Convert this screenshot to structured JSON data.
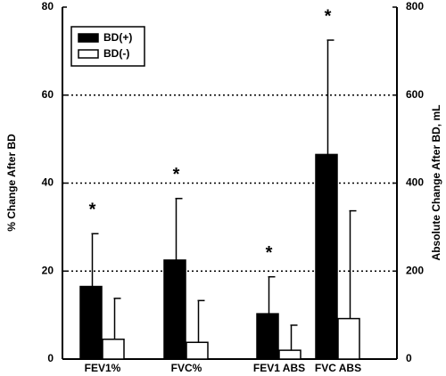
{
  "chart_data": {
    "type": "bar",
    "categories": [
      "FEV1%",
      "FVC%",
      "FEV1 ABS",
      "FVC ABS"
    ],
    "category_axis": [
      "y",
      "y",
      "y2",
      "y2"
    ],
    "series": [
      {
        "name": "BD(+)",
        "color": "#000000",
        "values": [
          16.5,
          22.5,
          103,
          465
        ],
        "errors": [
          12,
          14,
          84,
          260
        ]
      },
      {
        "name": "BD(-)",
        "color": "#ffffff",
        "values": [
          4.5,
          3.8,
          20,
          92
        ],
        "errors": [
          9.3,
          9.5,
          57,
          245
        ]
      }
    ],
    "significance": [
      "*",
      "*",
      "*",
      "*"
    ],
    "y_label": "% Change After BD",
    "y2_label": "Absolute Change After BD, mL",
    "ylim": [
      0,
      80
    ],
    "yticks": [
      0,
      20,
      40,
      60,
      80
    ],
    "y2lim": [
      0,
      800
    ],
    "y2ticks": [
      0,
      200,
      400,
      600,
      800
    ],
    "grid": true,
    "legend": "upper left"
  }
}
